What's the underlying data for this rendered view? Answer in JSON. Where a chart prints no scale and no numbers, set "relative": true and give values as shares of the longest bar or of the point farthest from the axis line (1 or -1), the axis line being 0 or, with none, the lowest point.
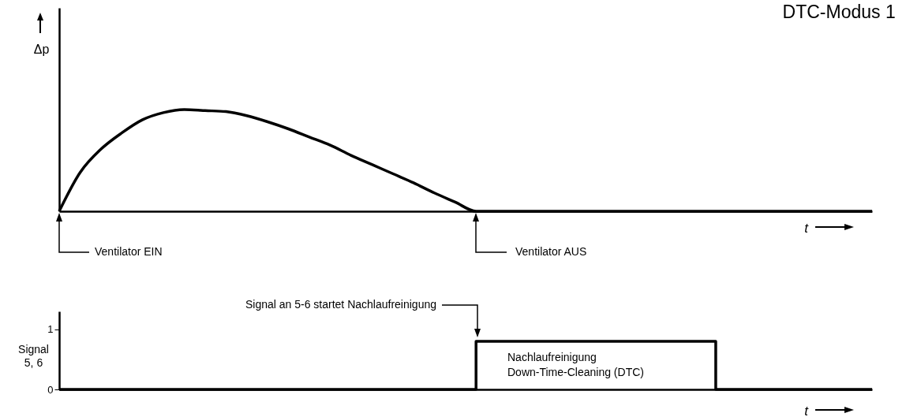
{
  "chart_data": [
    {
      "type": "line",
      "title": "DTC-Modus 1",
      "ylabel": "Δp",
      "xlabel": "t",
      "relative": true,
      "tick_labels": false,
      "grid": false,
      "categories": [
        null,
        null,
        null,
        null,
        null,
        null,
        null,
        null,
        null,
        null,
        null,
        null,
        null,
        null,
        null,
        null,
        null,
        null,
        null,
        null,
        null,
        null,
        null,
        null,
        null,
        null,
        null,
        null,
        null,
        null,
        null,
        null,
        null,
        null,
        null,
        null,
        null,
        null,
        null,
        null
      ],
      "series": [
        {
          "color": "#000000",
          "values": [
            0,
            0.38,
            0.61,
            0.77,
            0.9,
            0.97,
            1,
            0.99,
            0.98,
            0.94,
            0.88,
            0.81,
            0.73,
            0.65,
            0.55,
            0.46,
            0.37,
            0.28,
            0.18,
            0.09,
            0,
            0,
            0,
            0,
            0,
            0,
            0,
            0,
            0,
            0,
            0,
            0,
            0,
            0,
            0,
            0,
            0,
            0,
            0,
            0
          ]
        }
      ],
      "annotations": [
        "Ventilator EIN",
        "Ventilator AUS"
      ]
    },
    {
      "type": "step",
      "ylabel": "Signal\n5, 6",
      "xlabel": "t",
      "ylim": [
        0,
        1.3
      ],
      "yticks": [
        0,
        1
      ],
      "tick_labels": "y",
      "grid": false,
      "categories": [
        null,
        null,
        null,
        null,
        null,
        null,
        null,
        null,
        null,
        null,
        null,
        null,
        null,
        null,
        null,
        null,
        null,
        null,
        null,
        null,
        null,
        null,
        null,
        null,
        null,
        null,
        null,
        null,
        null,
        null,
        null,
        null,
        null,
        null,
        null,
        null,
        null,
        null,
        null,
        null,
        null,
        null,
        null,
        null,
        null,
        null,
        null,
        null,
        null,
        null,
        null,
        null,
        null,
        null,
        null,
        null,
        null,
        null,
        null,
        null,
        null,
        null,
        null,
        null,
        null,
        null,
        null,
        null,
        null,
        null,
        null,
        null,
        null,
        null,
        null,
        null,
        null,
        null,
        null
      ],
      "series": [
        {
          "color": "#000000",
          "values": [
            0,
            0,
            0,
            0,
            0,
            0,
            0,
            0,
            0,
            0,
            0,
            0,
            0,
            0,
            0,
            0,
            0,
            0,
            0,
            0,
            0,
            0,
            0,
            0,
            0,
            0,
            0,
            0,
            0,
            0,
            0,
            0,
            0,
            0,
            0,
            0,
            0,
            0,
            0,
            0,
            0.8,
            0.8,
            0.8,
            0.8,
            0.8,
            0.8,
            0.8,
            0.8,
            0.8,
            0.8,
            0.8,
            0.8,
            0.8,
            0.8,
            0.8,
            0.8,
            0.8,
            0.8,
            0.8,
            0.8,
            0.8,
            0.8,
            0.8,
            0,
            0,
            0,
            0,
            0,
            0,
            0,
            0,
            0,
            0,
            0,
            0,
            0,
            0,
            0,
            0
          ]
        }
      ],
      "annotations": [
        "Signal an 5-6 startet Nachlaufreinigung",
        "Nachlaufreinigung",
        "Down-Time-Cleaning (DTC)"
      ]
    }
  ]
}
